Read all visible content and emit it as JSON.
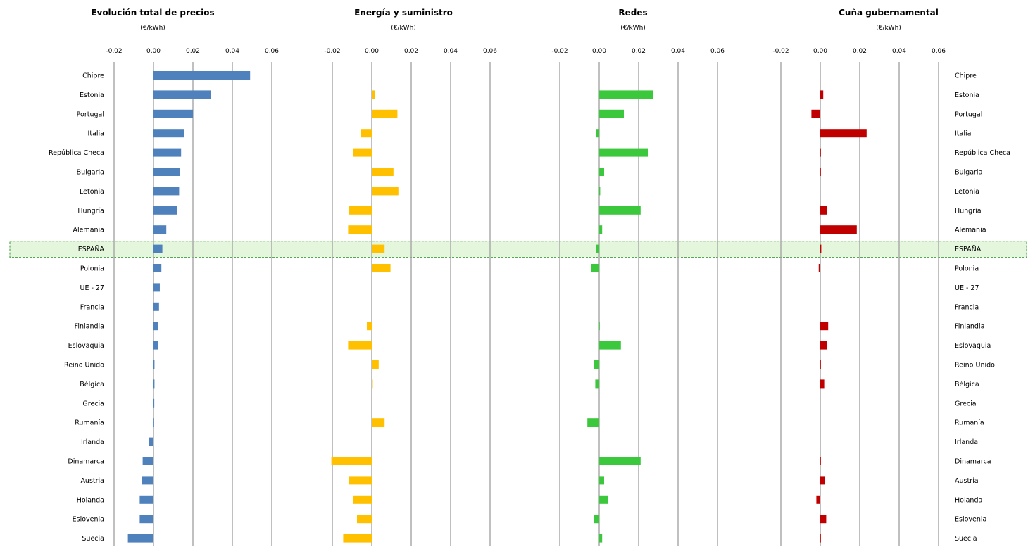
{
  "chart_data": [
    {
      "type": "bar",
      "title": "Evolución total de precios",
      "unit": "(€/kWh)",
      "ticks": [
        "-0,02",
        "0,00",
        "0,02",
        "0,04",
        "0,06"
      ],
      "xlim": [
        -0.02,
        0.06
      ],
      "color": "#4f81bd",
      "categories": [
        "Chipre",
        "Estonia",
        "Portugal",
        "Italia",
        "República Checa",
        "Bulgaria",
        "Letonia",
        "Hungría",
        "Alemania",
        "ESPAÑA",
        "Polonia",
        "UE - 27",
        "Francia",
        "Finlandia",
        "Eslovaquia",
        "Reino Unido",
        "Bélgica",
        "Grecia",
        "Rumanía",
        "Irlanda",
        "Dinamarca",
        "Austria",
        "Holanda",
        "Eslovenia",
        "Suecia"
      ],
      "values": [
        0.049,
        0.029,
        0.02,
        0.0155,
        0.014,
        0.0135,
        0.013,
        0.012,
        0.0065,
        0.0045,
        0.004,
        0.0032,
        0.0028,
        0.0025,
        0.0025,
        0.0005,
        0.0005,
        0.0004,
        0.0003,
        -0.0025,
        -0.0055,
        -0.006,
        -0.007,
        -0.007,
        -0.013
      ]
    },
    {
      "type": "bar",
      "title": "Energía y suministro",
      "unit": "(€/kWh)",
      "ticks": [
        "-0,02",
        "0,00",
        "0,02",
        "0,04",
        "0,06"
      ],
      "xlim": [
        -0.02,
        0.06
      ],
      "color": "#ffc000",
      "categories": [
        "Chipre",
        "Estonia",
        "Portugal",
        "Italia",
        "República Checa",
        "Bulgaria",
        "Letonia",
        "Hungría",
        "Alemania",
        "ESPAÑA",
        "Polonia",
        "UE - 27",
        "Francia",
        "Finlandia",
        "Eslovaquia",
        "Reino Unido",
        "Bélgica",
        "Grecia",
        "Rumanía",
        "Irlanda",
        "Dinamarca",
        "Austria",
        "Holanda",
        "Eslovenia",
        "Suecia"
      ],
      "values": [
        0,
        0.0015,
        0.013,
        -0.0055,
        -0.0095,
        0.011,
        0.0135,
        -0.0115,
        -0.012,
        0.0065,
        0.0095,
        0,
        0,
        -0.0025,
        -0.012,
        0.0035,
        0.0005,
        0,
        0.0065,
        0,
        -0.0205,
        -0.0115,
        -0.0095,
        -0.0075,
        -0.0145
      ]
    },
    {
      "type": "bar",
      "title": "Redes",
      "unit": "(€/kWh)",
      "ticks": [
        "-0,02",
        "0,00",
        "0,02",
        "0,04",
        "0,06"
      ],
      "xlim": [
        -0.02,
        0.06
      ],
      "color": "#3cc83c",
      "categories": [
        "Chipre",
        "Estonia",
        "Portugal",
        "Italia",
        "República Checa",
        "Bulgaria",
        "Letonia",
        "Hungría",
        "Alemania",
        "ESPAÑA",
        "Polonia",
        "UE - 27",
        "Francia",
        "Finlandia",
        "Eslovaquia",
        "Reino Unido",
        "Bélgica",
        "Grecia",
        "Rumanía",
        "Irlanda",
        "Dinamarca",
        "Austria",
        "Holanda",
        "Eslovenia",
        "Suecia"
      ],
      "values": [
        0,
        0.0275,
        0.0125,
        -0.0015,
        0.025,
        0.0025,
        0.0005,
        0.021,
        0.0015,
        -0.0015,
        -0.004,
        0,
        0,
        0.0003,
        0.011,
        -0.0025,
        -0.002,
        0,
        -0.006,
        0,
        0.021,
        0.0025,
        0.0045,
        -0.0025,
        0.0015
      ]
    },
    {
      "type": "bar",
      "title": "Cuña gubernamental",
      "unit": "(€/kWh)",
      "ticks": [
        "-0,02",
        "0,00",
        "0,02",
        "0,04",
        "0,06"
      ],
      "xlim": [
        -0.02,
        0.06
      ],
      "color": "#c00000",
      "categories": [
        "Chipre",
        "Estonia",
        "Portugal",
        "Italia",
        "República Checa",
        "Bulgaria",
        "Letonia",
        "Hungría",
        "Alemania",
        "ESPAÑA",
        "Polonia",
        "UE - 27",
        "Francia",
        "Finlandia",
        "Eslovaquia",
        "Reino Unido",
        "Bélgica",
        "Grecia",
        "Rumanía",
        "Irlanda",
        "Dinamarca",
        "Austria",
        "Holanda",
        "Eslovenia",
        "Suecia"
      ],
      "values": [
        0,
        0.0015,
        -0.0045,
        0.0235,
        0.0003,
        0.0003,
        0,
        0.0035,
        0.0185,
        0.0005,
        -0.0008,
        0,
        0,
        0.004,
        0.0035,
        0.0003,
        0.002,
        0,
        0,
        0,
        0.0003,
        0.0025,
        -0.002,
        0.003,
        0.0003
      ]
    }
  ],
  "highlight_row": "ESPAÑA"
}
